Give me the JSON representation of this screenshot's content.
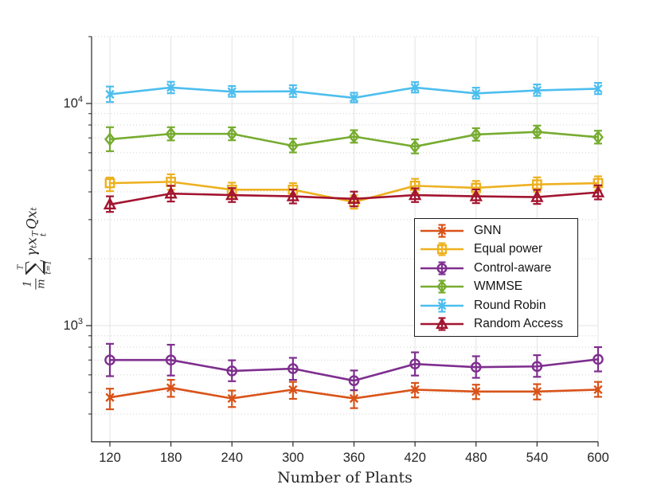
{
  "chart_data": {
    "type": "line",
    "title": "",
    "xlabel": "Number of Plants",
    "ylabel_text": "(1/m) sum_{t=1}^{T} gamma^t x_t^T Q x_t",
    "ylabel_parts": {
      "frac_num": "1",
      "frac_den": "m",
      "sigma": "∑",
      "sum_top": "T",
      "sum_bottom": "t=1",
      "gamma": "γ",
      "gamma_exp": "t",
      "x1": "x",
      "x1_sup": "T",
      "x1_sub": "t",
      "q": "Q",
      "x2": "x",
      "x2_sub": "t"
    },
    "x": [
      120,
      180,
      240,
      300,
      360,
      420,
      480,
      540,
      600
    ],
    "x_ticks": [
      120,
      180,
      240,
      300,
      360,
      420,
      480,
      540,
      600
    ],
    "y_scale": "log",
    "ylim": [
      300,
      20000
    ],
    "y_major_ticks": [
      1000,
      10000
    ],
    "y_minor_lines": [
      400,
      500,
      600,
      700,
      800,
      900,
      2000,
      3000,
      4000,
      5000,
      6000,
      7000,
      8000,
      9000,
      20000
    ],
    "grid": true,
    "legend_position": "inside-middle-right",
    "style": {
      "axis_color": "#262626",
      "grid_major_color": "#e3e3e3",
      "grid_minor_color": "#cfcfcf",
      "background": "#ffffff"
    },
    "series": [
      {
        "name": "GNN",
        "color": "#D95319",
        "marker": "x",
        "values": [
          475,
          525,
          470,
          515,
          470,
          515,
          505,
          505,
          515
        ],
        "err_lo": [
          420,
          478,
          430,
          468,
          425,
          475,
          467,
          465,
          478
        ],
        "err_hi": [
          520,
          570,
          510,
          558,
          512,
          552,
          542,
          545,
          558
        ]
      },
      {
        "name": "Equal power",
        "color": "#EDB120",
        "marker": "square",
        "values": [
          4380,
          4440,
          4090,
          4090,
          3600,
          4260,
          4170,
          4320,
          4380
        ],
        "err_lo": [
          4030,
          4090,
          3800,
          3820,
          3360,
          3950,
          3900,
          4000,
          4060
        ],
        "err_hi": [
          4640,
          4800,
          4400,
          4380,
          3860,
          4580,
          4480,
          4650,
          4700
        ]
      },
      {
        "name": "Control-aware",
        "color": "#7E2F8E",
        "marker": "circle",
        "values": [
          700,
          700,
          625,
          640,
          565,
          672,
          650,
          655,
          705
        ],
        "err_lo": [
          592,
          596,
          562,
          570,
          512,
          596,
          582,
          588,
          622
        ],
        "err_hi": [
          828,
          820,
          698,
          716,
          628,
          758,
          728,
          736,
          800
        ]
      },
      {
        "name": "WMMSE",
        "color": "#77AC30",
        "marker": "diamond",
        "values": [
          6900,
          7300,
          7300,
          6450,
          7100,
          6400,
          7250,
          7450,
          7050
        ],
        "err_lo": [
          6100,
          6820,
          6830,
          6020,
          6660,
          5960,
          6800,
          7000,
          6600
        ],
        "err_hi": [
          7820,
          7820,
          7810,
          6940,
          7580,
          6890,
          7740,
          7950,
          7540
        ]
      },
      {
        "name": "Round Robin",
        "color": "#4DBEEE",
        "marker": "x",
        "values": [
          11000,
          11800,
          11300,
          11350,
          10600,
          11800,
          11100,
          11450,
          11650
        ],
        "err_lo": [
          10150,
          11120,
          10720,
          10700,
          10120,
          11200,
          10520,
          10820,
          11020
        ],
        "err_hi": [
          11920,
          12520,
          11980,
          12080,
          11180,
          12480,
          11780,
          12180,
          12380
        ]
      },
      {
        "name": "Random Access",
        "color": "#A2142F",
        "marker": "triangle",
        "values": [
          3510,
          3930,
          3870,
          3820,
          3720,
          3870,
          3820,
          3790,
          3980
        ],
        "err_lo": [
          3250,
          3620,
          3600,
          3550,
          3440,
          3600,
          3560,
          3530,
          3700
        ],
        "err_hi": [
          3820,
          4260,
          4160,
          4100,
          4010,
          4150,
          4100,
          4080,
          4280
        ]
      }
    ]
  }
}
